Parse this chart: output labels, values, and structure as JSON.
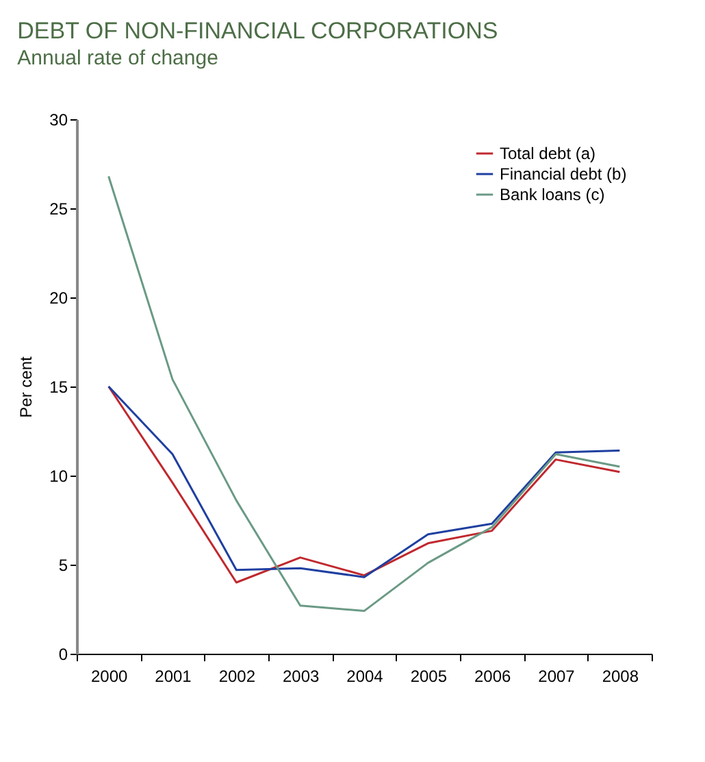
{
  "chart_data": {
    "type": "line",
    "title": "DEBT OF NON-FINANCIAL CORPORATIONS",
    "subtitle": "Annual rate of change",
    "ylabel": "Per cent",
    "categories": [
      "2000",
      "2001",
      "2002",
      "2003",
      "2004",
      "2005",
      "2006",
      "2007",
      "2008"
    ],
    "series": [
      {
        "name": "Total debt (a)",
        "color": "#c0282e",
        "values": [
          15.0,
          9.6,
          4.0,
          5.4,
          4.4,
          6.2,
          6.9,
          10.9,
          10.2
        ]
      },
      {
        "name": "Financial debt (b)",
        "color": "#1f3fa0",
        "values": [
          15.0,
          11.2,
          4.7,
          4.8,
          4.3,
          6.7,
          7.3,
          11.3,
          11.4
        ]
      },
      {
        "name": "Bank loans (c)",
        "color": "#6a9a85",
        "values": [
          26.8,
          15.4,
          8.6,
          2.7,
          2.4,
          5.1,
          7.1,
          11.2,
          10.5
        ]
      }
    ],
    "ylim": [
      0,
      30
    ],
    "yticks": [
      0,
      5,
      10,
      15,
      20,
      25,
      30
    ],
    "grid": false,
    "legend": "top right",
    "marker": "none",
    "line_style": "solid"
  }
}
